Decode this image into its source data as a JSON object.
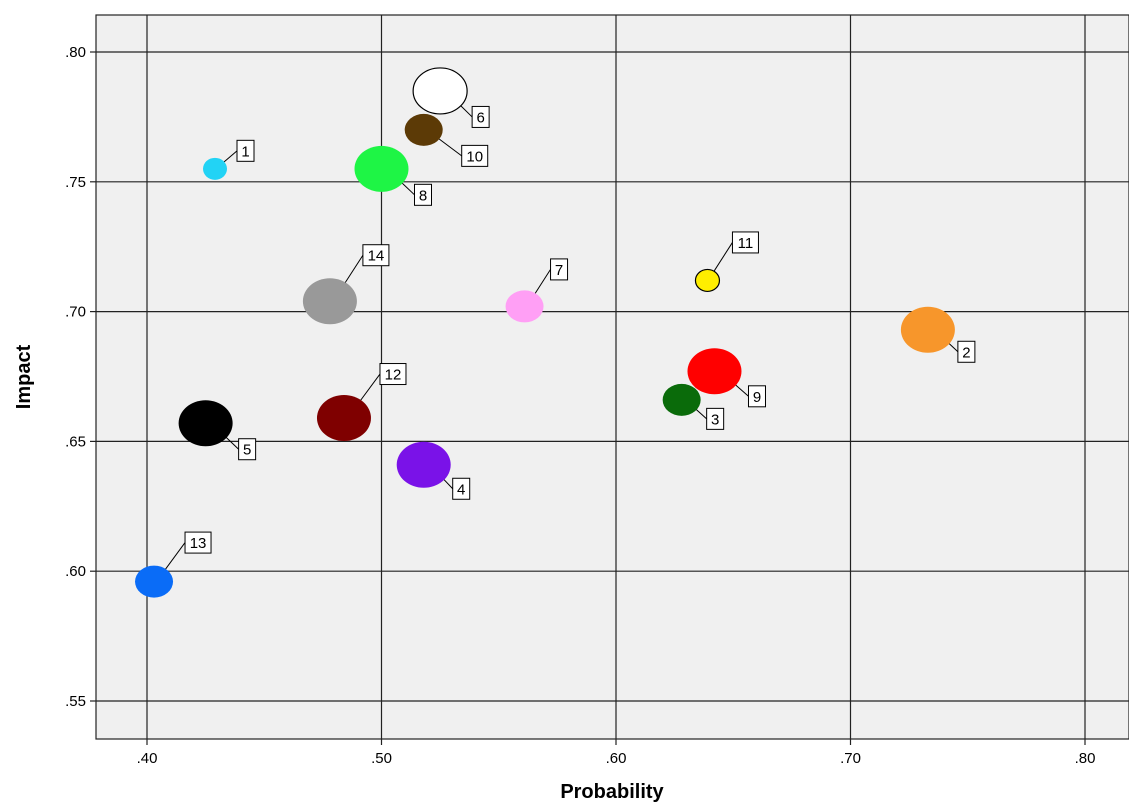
{
  "chart_data": {
    "type": "scatter",
    "xlabel": "Probability",
    "ylabel": "Impact",
    "xlim": [
      0.38,
      0.82
    ],
    "ylim": [
      0.535,
      0.815
    ],
    "x_ticks": [
      0.4,
      0.5,
      0.6,
      0.7,
      0.8
    ],
    "y_ticks": [
      0.55,
      0.6,
      0.65,
      0.7,
      0.75,
      0.8
    ],
    "x_tick_labels": [
      ".40",
      ".50",
      ".60",
      ".70",
      ".80"
    ],
    "y_tick_labels": [
      ".55",
      ".60",
      ".65",
      ".70",
      ".75",
      ".80"
    ],
    "grid": true,
    "points": [
      {
        "label": "1",
        "x": 0.429,
        "y": 0.755,
        "color": "#22d3f5",
        "size": "small"
      },
      {
        "label": "2",
        "x": 0.733,
        "y": 0.693,
        "color": "#f7962b",
        "size": "large"
      },
      {
        "label": "3",
        "x": 0.628,
        "y": 0.666,
        "color": "#0a6b0a",
        "size": "medium"
      },
      {
        "label": "4",
        "x": 0.518,
        "y": 0.641,
        "color": "#7a12e8",
        "size": "large"
      },
      {
        "label": "5",
        "x": 0.425,
        "y": 0.657,
        "color": "#000000",
        "size": "large"
      },
      {
        "label": "6",
        "x": 0.525,
        "y": 0.785,
        "color": "#ffffff",
        "size": "large"
      },
      {
        "label": "7",
        "x": 0.561,
        "y": 0.702,
        "color": "#ff9ff5",
        "size": "medium"
      },
      {
        "label": "8",
        "x": 0.5,
        "y": 0.755,
        "color": "#1ef545",
        "size": "large"
      },
      {
        "label": "9",
        "x": 0.642,
        "y": 0.677,
        "color": "#ff0000",
        "size": "large"
      },
      {
        "label": "10",
        "x": 0.518,
        "y": 0.77,
        "color": "#5c3a06",
        "size": "medium"
      },
      {
        "label": "11",
        "x": 0.639,
        "y": 0.712,
        "color": "#ffee00",
        "size": "small"
      },
      {
        "label": "12",
        "x": 0.484,
        "y": 0.659,
        "color": "#7f0000",
        "size": "large"
      },
      {
        "label": "13",
        "x": 0.403,
        "y": 0.596,
        "color": "#0a6cf7",
        "size": "medium"
      },
      {
        "label": "14",
        "x": 0.478,
        "y": 0.704,
        "color": "#999999",
        "size": "large"
      }
    ]
  }
}
